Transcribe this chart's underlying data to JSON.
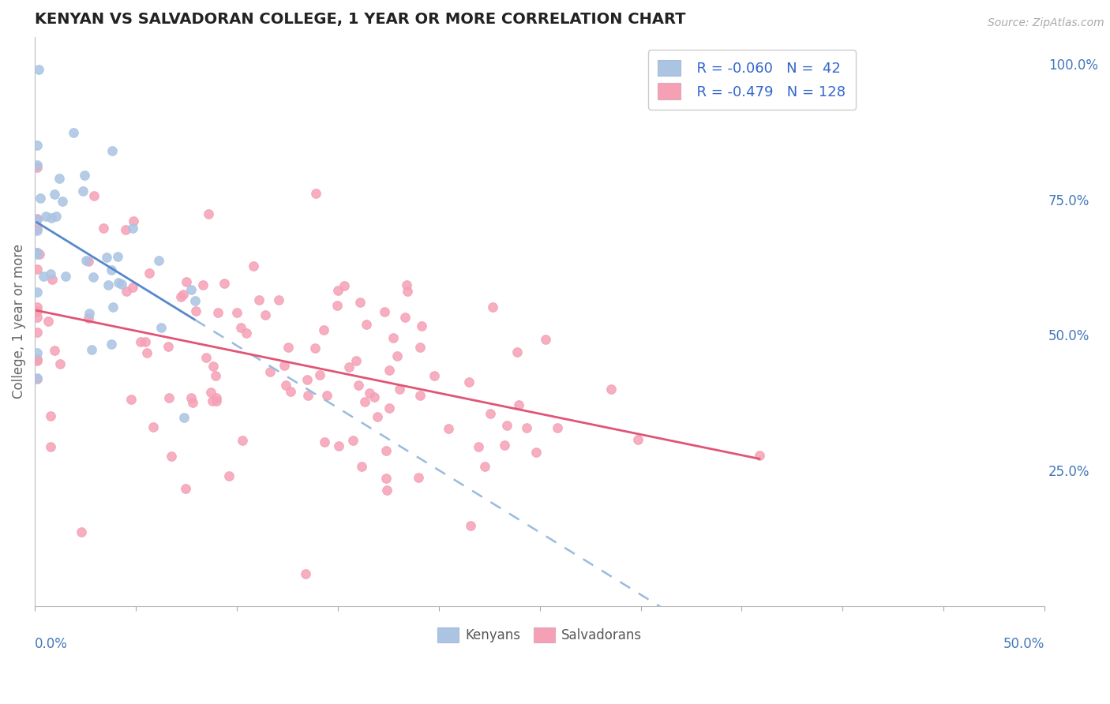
{
  "title": "KENYAN VS SALVADORAN COLLEGE, 1 YEAR OR MORE CORRELATION CHART",
  "source_text": "Source: ZipAtlas.com",
  "ylabel": "College, 1 year or more",
  "right_yticks": [
    0.0,
    0.25,
    0.5,
    0.75,
    1.0
  ],
  "right_yticklabels": [
    "",
    "25.0%",
    "50.0%",
    "75.0%",
    "100.0%"
  ],
  "xlim": [
    0.0,
    0.5
  ],
  "ylim": [
    0.0,
    1.05
  ],
  "kenyan_R": -0.06,
  "kenyan_N": 42,
  "salvadoran_R": -0.479,
  "salvadoran_N": 128,
  "kenyan_color": "#aac4e2",
  "salvadoran_color": "#f5a0b5",
  "kenyan_line_color": "#5588cc",
  "kenyan_dashed_color": "#99bbdd",
  "salvadoran_line_color": "#e05575",
  "legend_text_color": "#3366cc",
  "background_color": "#ffffff",
  "grid_color": "#cccccc",
  "title_color": "#222222",
  "axis_label_color": "#4477bb",
  "source_color": "#aaaaaa"
}
